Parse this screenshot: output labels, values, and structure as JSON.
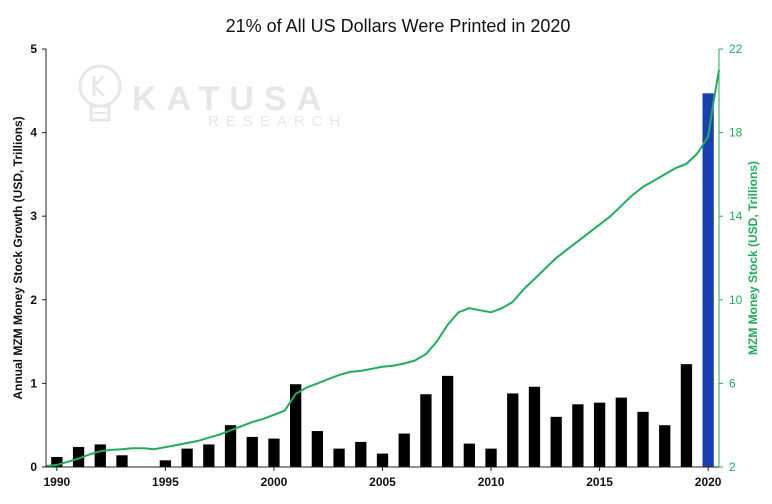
{
  "chart_data": {
    "type": "bar",
    "title": "21% of All US Dollars Were Printed in 2020",
    "watermark": {
      "name": "KATUSA",
      "sub": "RESEARCH"
    },
    "ylabel": "Annual MZM Money Stock Growth (USD, Trillions)",
    "y2label": "MZM Money Stock (USD, Trillions)",
    "ylim": [
      0,
      5
    ],
    "yticks": [
      0,
      1,
      2,
      3,
      4,
      5
    ],
    "y2lim": [
      2,
      22
    ],
    "y2ticks": [
      2,
      6,
      10,
      14,
      18,
      22
    ],
    "xlim": [
      1989.5,
      2020.5
    ],
    "xticks": [
      1990,
      1995,
      2000,
      2005,
      2010,
      2015,
      2020
    ],
    "colors": {
      "bar": "#000000",
      "highlight_bar": "#1a3fb0",
      "line": "#1fae5a"
    },
    "series": [
      {
        "type": "bar",
        "x": [
          1990,
          1991,
          1992,
          1993,
          1994,
          1995,
          1996,
          1997,
          1998,
          1999,
          2000,
          2001,
          2002,
          2003,
          2004,
          2005,
          2006,
          2007,
          2008,
          2009,
          2010,
          2011,
          2012,
          2013,
          2014,
          2015,
          2016,
          2017,
          2018,
          2019,
          2020
        ],
        "values": [
          0.12,
          0.24,
          0.27,
          0.14,
          0.0,
          0.08,
          0.22,
          0.27,
          0.5,
          0.36,
          0.34,
          0.99,
          0.43,
          0.22,
          0.3,
          0.16,
          0.4,
          0.87,
          1.09,
          0.28,
          0.22,
          0.88,
          0.96,
          0.6,
          0.75,
          0.77,
          0.83,
          0.66,
          0.5,
          1.23,
          4.47
        ],
        "highlight_index": 30
      },
      {
        "type": "line",
        "x": [
          1989.5,
          1990,
          1990.5,
          1991,
          1991.5,
          1992,
          1992.5,
          1993,
          1993.5,
          1994,
          1994.5,
          1995,
          1995.5,
          1996,
          1996.5,
          1997,
          1997.5,
          1998,
          1998.5,
          1999,
          1999.5,
          2000,
          2000.5,
          2001,
          2001.5,
          2002,
          2002.5,
          2003,
          2003.5,
          2004,
          2004.5,
          2005,
          2005.5,
          2006,
          2006.5,
          2007,
          2007.5,
          2008,
          2008.5,
          2009,
          2009.5,
          2010,
          2010.5,
          2011,
          2011.5,
          2012,
          2012.5,
          2013,
          2013.5,
          2014,
          2014.5,
          2015,
          2015.5,
          2016,
          2016.5,
          2017,
          2017.5,
          2018,
          2018.5,
          2019,
          2019.5,
          2020,
          2020.25,
          2020.5
        ],
        "values": [
          2.05,
          2.1,
          2.25,
          2.4,
          2.6,
          2.75,
          2.82,
          2.85,
          2.9,
          2.9,
          2.85,
          2.95,
          3.05,
          3.15,
          3.25,
          3.4,
          3.55,
          3.75,
          3.95,
          4.15,
          4.3,
          4.5,
          4.7,
          5.5,
          5.8,
          6.0,
          6.2,
          6.4,
          6.55,
          6.6,
          6.7,
          6.8,
          6.85,
          6.95,
          7.1,
          7.4,
          8.0,
          8.8,
          9.4,
          9.6,
          9.5,
          9.4,
          9.6,
          9.9,
          10.5,
          11.0,
          11.5,
          12.0,
          12.4,
          12.8,
          13.2,
          13.6,
          14.0,
          14.5,
          15.0,
          15.4,
          15.7,
          16.0,
          16.3,
          16.5,
          17.0,
          17.8,
          19.5,
          21.0
        ]
      }
    ]
  }
}
